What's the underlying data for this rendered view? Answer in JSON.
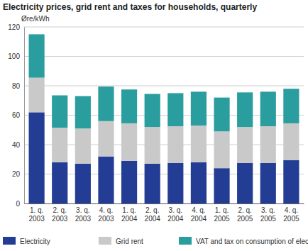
{
  "chart_data": {
    "type": "bar",
    "title": "Electricity prices, grid rent and taxes for households, quarterly",
    "y_label": "Øre/kWh",
    "categories": [
      "1. q.\n2003",
      "2. q.\n2003",
      "3. q.\n2003",
      "4. q.\n2003",
      "1. q.\n2004",
      "2. q.\n2004",
      "3. q.\n2004",
      "4. q.\n2004",
      "1. q.\n2005",
      "2. q.\n2005",
      "3. q.\n2005",
      "4. q.\n2005"
    ],
    "series": [
      {
        "name": "Electricity",
        "color": "#233d94",
        "values": [
          62,
          28,
          27,
          32,
          29,
          27,
          27.5,
          28,
          24,
          27.5,
          27.5,
          29.5
        ]
      },
      {
        "name": "Grid rent",
        "color": "#c9c9c9",
        "values": [
          23.5,
          23.5,
          24,
          24,
          25.5,
          25,
          25,
          25,
          25,
          24.5,
          25,
          25
        ]
      },
      {
        "name": "VAT and tax on consumption of electricity",
        "color": "#2a9d9f",
        "values": [
          29.5,
          22,
          22,
          23.5,
          23,
          22.5,
          22.5,
          23,
          23,
          23.5,
          23.5,
          23.5
        ]
      }
    ],
    "stacked": true,
    "ylim": [
      0,
      120
    ],
    "yticks": [
      0,
      20,
      40,
      60,
      80,
      100,
      120
    ],
    "grid": true,
    "legend": "bottom"
  }
}
